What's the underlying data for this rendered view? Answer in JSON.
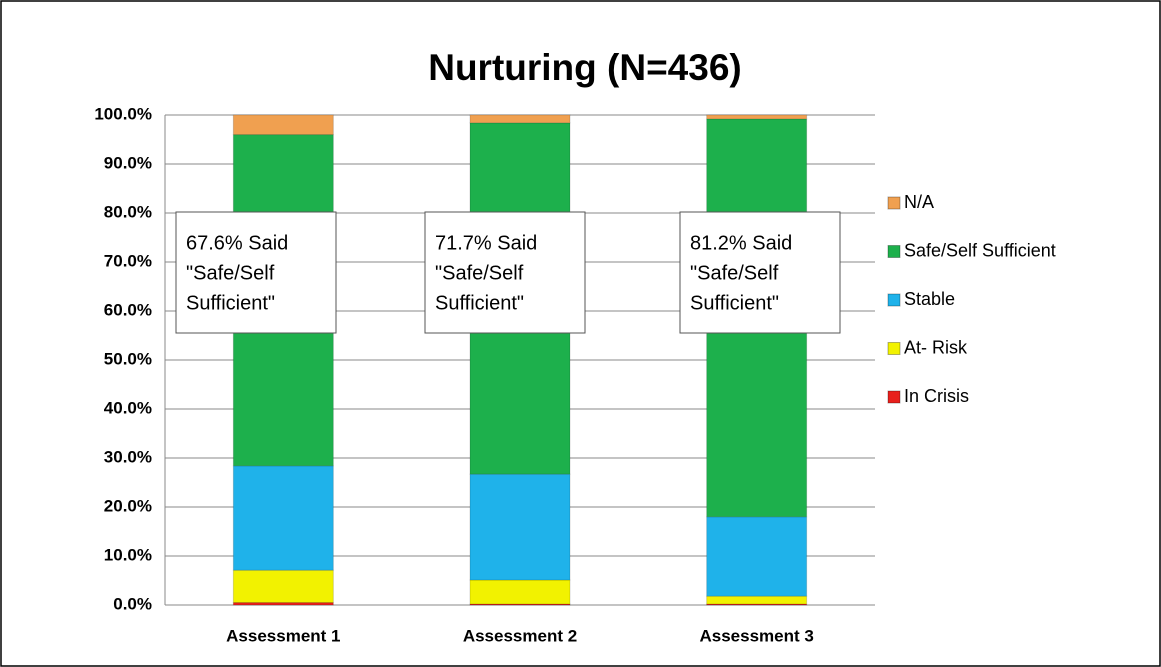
{
  "chart_data": {
    "type": "stacked_bar",
    "title": "Nurturing (N=436)",
    "categories": [
      "Assessment 1",
      "Assessment 2",
      "Assessment 3"
    ],
    "series": [
      {
        "name": "In Crisis",
        "color": "#e8201c",
        "values": [
          0.5,
          0.2,
          0.2
        ]
      },
      {
        "name": "At- Risk",
        "color": "#f2f200",
        "values": [
          6.6,
          4.9,
          1.6
        ]
      },
      {
        "name": "Stable",
        "color": "#1fb2ea",
        "values": [
          21.3,
          21.6,
          16.2
        ]
      },
      {
        "name": "Safe/Self Sufficient",
        "color": "#1db04c",
        "values": [
          67.6,
          71.7,
          81.2
        ]
      },
      {
        "name": "N/A",
        "color": "#f0a050",
        "values": [
          4.0,
          1.6,
          0.8
        ]
      }
    ],
    "annotations": [
      [
        "67.6% Said",
        "\"Safe/Self",
        "Sufficient\""
      ],
      [
        "71.7% Said",
        "\"Safe/Self",
        "Sufficient\""
      ],
      [
        "81.2% Said",
        "\"Safe/Self",
        "Sufficient\""
      ]
    ],
    "ylim": [
      0,
      100
    ],
    "yticks": [
      {
        "value": 0,
        "label": "0.0%"
      },
      {
        "value": 10,
        "label": "10.0%"
      },
      {
        "value": 20,
        "label": "20.0%"
      },
      {
        "value": 30,
        "label": "30.0%"
      },
      {
        "value": 40,
        "label": "40.0%"
      },
      {
        "value": 50,
        "label": "50.0%"
      },
      {
        "value": 60,
        "label": "60.0%"
      },
      {
        "value": 70,
        "label": "70.0%"
      },
      {
        "value": 80,
        "label": "80.0%"
      },
      {
        "value": 90,
        "label": "90.0%"
      },
      {
        "value": 100,
        "label": "100.0%"
      }
    ],
    "grid": true,
    "legend": "right"
  }
}
